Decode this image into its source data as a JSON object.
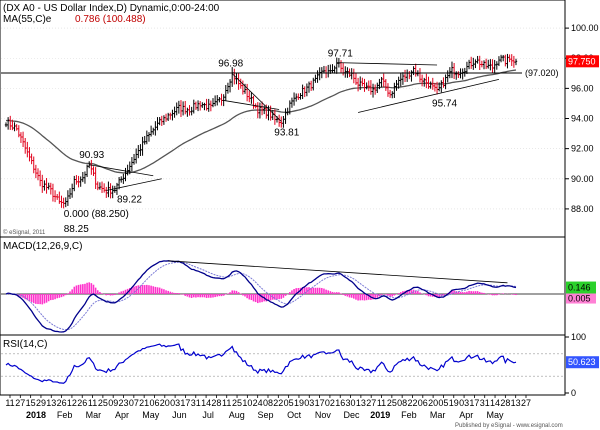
{
  "title": "(DX A0 - US Dollar Index,D) Dynamic,0:00-24:00",
  "ma_label": "MA(55,C)e",
  "fib_label": "0.786 (100.488)",
  "copyright": "© eSignal, 2011",
  "footer": "Published by eSignal - www.esignal.com",
  "colors": {
    "up": "#000000",
    "down": "#e0001b",
    "ma": "#555555",
    "macd": "#00008b",
    "signal": "#7b7bd6",
    "hist": "#ff33cc",
    "rsi": "#0000cd",
    "badge": "#ff0000"
  },
  "chart_data": [
    {
      "type": "line",
      "panel": "price",
      "x_axis": {
        "day_labels": [
          "11",
          "27",
          "15",
          "29",
          "13",
          "26",
          "12",
          "26",
          "11",
          "25",
          "09",
          "23",
          "07",
          "21",
          "06",
          "20",
          "03",
          "17",
          "31",
          "14",
          "28",
          "11",
          "25",
          "10",
          "24",
          "08",
          "22",
          "05",
          "19",
          "03",
          "17",
          "02",
          "16",
          "30",
          "13",
          "27",
          "11",
          "25",
          "08",
          "22",
          "06",
          "20",
          "05",
          "19",
          "03",
          "17",
          "31",
          "14",
          "28",
          "13",
          "27"
        ],
        "month_labels": [
          "2018",
          "Feb",
          "Mar",
          "Apr",
          "May",
          "Jun",
          "Jul",
          "Aug",
          "Sep",
          "Oct",
          "Nov",
          "Dec",
          "2019",
          "Feb",
          "Mar",
          "Apr",
          "May"
        ]
      },
      "ylim": [
        86.6,
        101.6
      ],
      "y_ticks": [
        "100.00",
        "98.00",
        "96.00",
        "94.00",
        "92.00",
        "90.00",
        "88.00"
      ],
      "last_price": "97.750",
      "level_label": "(97.020)",
      "horizontal_level": 97.02,
      "annotations": [
        {
          "text": "97.71",
          "x": 155,
          "y": 97.71
        },
        {
          "text": "96.98",
          "x": 106,
          "y": 96.98
        },
        {
          "text": "93.81",
          "x": 129,
          "y": 93.81
        },
        {
          "text": "95.74",
          "x": 202,
          "y": 95.74
        },
        {
          "text": "90.93",
          "x": 39,
          "y": 90.93
        },
        {
          "text": "89.22",
          "x": 52,
          "y": 89.22
        },
        {
          "text": "0.000 (88.250)",
          "x": 28,
          "y": 88.25
        },
        {
          "text": "88.25",
          "x": 28,
          "y": 88.25
        }
      ],
      "anchors": [
        [
          0,
          93.8
        ],
        [
          5,
          93.3
        ],
        [
          10,
          91.7
        ],
        [
          16,
          89.8
        ],
        [
          21,
          89.2
        ],
        [
          25,
          88.4
        ],
        [
          28,
          88.3
        ],
        [
          32,
          89.8
        ],
        [
          36,
          90.1
        ],
        [
          39,
          90.9
        ],
        [
          43,
          89.5
        ],
        [
          47,
          89.2
        ],
        [
          51,
          89.3
        ],
        [
          56,
          90.4
        ],
        [
          61,
          91.6
        ],
        [
          66,
          92.7
        ],
        [
          71,
          93.6
        ],
        [
          76,
          94.2
        ],
        [
          81,
          94.7
        ],
        [
          86,
          94.6
        ],
        [
          91,
          95.0
        ],
        [
          96,
          94.7
        ],
        [
          101,
          95.3
        ],
        [
          106,
          96.98
        ],
        [
          110,
          96.1
        ],
        [
          114,
          95.4
        ],
        [
          118,
          94.6
        ],
        [
          123,
          94.4
        ],
        [
          126,
          93.9
        ],
        [
          129,
          93.81
        ],
        [
          133,
          94.9
        ],
        [
          137,
          95.6
        ],
        [
          141,
          96.0
        ],
        [
          145,
          96.5
        ],
        [
          149,
          97.2
        ],
        [
          152,
          97.0
        ],
        [
          155,
          97.71
        ],
        [
          158,
          97.1
        ],
        [
          162,
          96.9
        ],
        [
          165,
          96.3
        ],
        [
          168,
          96.0
        ],
        [
          172,
          95.9
        ],
        [
          176,
          96.5
        ],
        [
          180,
          95.6
        ],
        [
          184,
          96.5
        ],
        [
          188,
          96.9
        ],
        [
          191,
          97.3
        ],
        [
          194,
          96.7
        ],
        [
          198,
          96.3
        ],
        [
          202,
          95.74
        ],
        [
          205,
          96.4
        ],
        [
          209,
          97.2
        ],
        [
          212,
          97.1
        ],
        [
          216,
          97.4
        ],
        [
          220,
          97.9
        ],
        [
          224,
          97.5
        ],
        [
          228,
          97.4
        ],
        [
          231,
          98.0
        ],
        [
          234,
          97.8
        ],
        [
          237,
          98.0
        ],
        [
          239,
          97.75
        ]
      ],
      "series": [
        {
          "name": "US Dollar Index",
          "kind": "ohlc"
        },
        {
          "name": "MA(55,C)e",
          "kind": "ema",
          "period": 55
        }
      ],
      "trendlines": [
        {
          "from": [
            106,
            96.98
          ],
          "to": [
            129,
            93.81
          ]
        },
        {
          "from": [
            102,
            95.2
          ],
          "to": [
            128,
            94.6
          ]
        },
        {
          "from": [
            155,
            97.71
          ],
          "to": [
            202,
            97.55
          ]
        },
        {
          "from": [
            165,
            94.4
          ],
          "to": [
            231,
            96.6
          ]
        },
        {
          "from": [
            39,
            90.93
          ],
          "to": [
            69,
            90.2
          ]
        },
        {
          "from": [
            47,
            89.22
          ],
          "to": [
            73,
            90.0
          ]
        }
      ]
    },
    {
      "type": "line",
      "panel": "macd",
      "label": "MACD(12,26,9,C)",
      "macd_value": "0.146",
      "signal_value": "0.005",
      "series": [
        {
          "name": "MACD",
          "kind": "macd"
        },
        {
          "name": "Signal",
          "kind": "signal"
        },
        {
          "name": "Histogram",
          "kind": "histogram"
        }
      ],
      "trendline": {
        "from_x": 77,
        "to_x": 235
      }
    },
    {
      "type": "line",
      "panel": "rsi",
      "label": "RSI(14,C)",
      "ylim": [
        0,
        100
      ],
      "y_ticks": [
        "100",
        "0"
      ],
      "last_value": "50.623",
      "series": [
        {
          "name": "RSI",
          "kind": "rsi",
          "period": 14
        }
      ]
    }
  ]
}
